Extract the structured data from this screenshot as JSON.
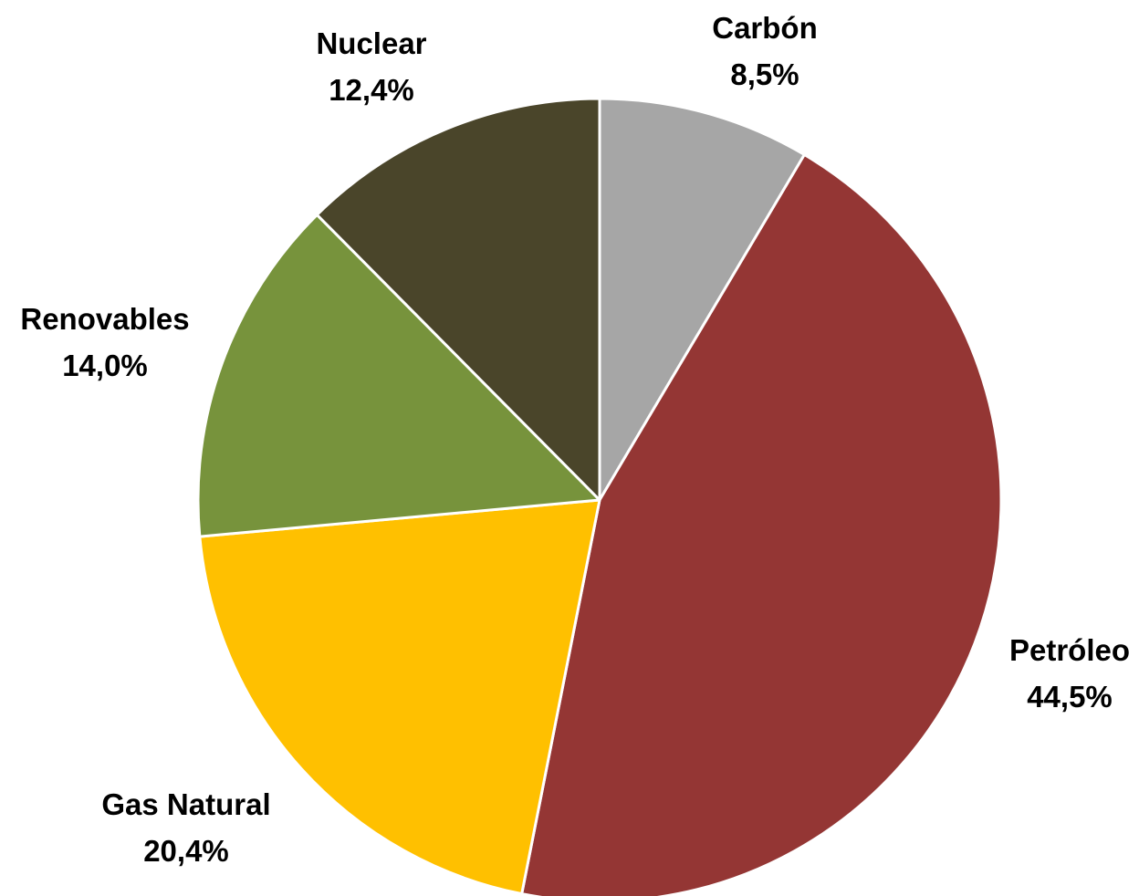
{
  "chart_data": {
    "type": "pie",
    "title": "",
    "slices": [
      {
        "category": "Carbón",
        "value": 8.5,
        "value_label": "8,5%",
        "color": "#A6A6A6"
      },
      {
        "category": "Petróleo",
        "value": 44.5,
        "value_label": "44,5%",
        "color": "#943634"
      },
      {
        "category": "Gas Natural",
        "value": 20.4,
        "value_label": "20,4%",
        "color": "#FFC000"
      },
      {
        "category": "Renovables",
        "value": 14.0,
        "value_label": "14,0%",
        "color": "#77933C"
      },
      {
        "category": "Nuclear",
        "value": 12.4,
        "value_label": "12,4%",
        "color": "#4A452A"
      }
    ],
    "start_angle": "12 o'clock",
    "direction": "clockwise",
    "legend": "none",
    "data_labels": "outside slices, category name above percentage"
  }
}
